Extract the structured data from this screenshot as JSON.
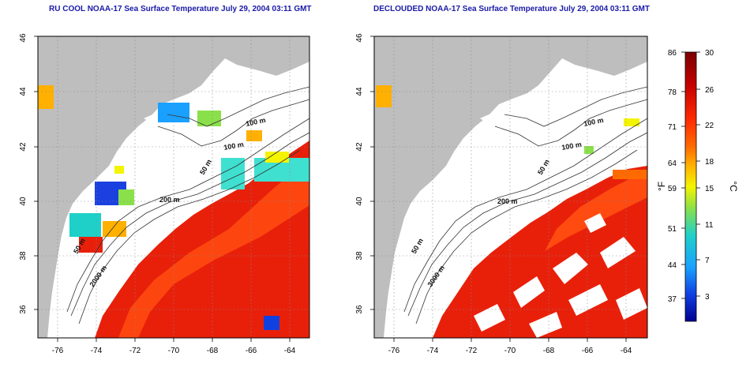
{
  "titles": {
    "left": "RU COOL NOAA-17 Sea Surface Temperature July 29, 2004 03:11 GMT",
    "right": "DECLOUDED NOAA-17 Sea Surface Temperature July 29, 2004 03:11 GMT"
  },
  "map_axes": {
    "lon_ticks": [
      "-76",
      "-74",
      "-72",
      "-70",
      "-68",
      "-66",
      "-64"
    ],
    "lat_ticks": [
      "36",
      "38",
      "40",
      "42",
      "44",
      "46"
    ],
    "grid": "dotted"
  },
  "contours": {
    "left": [
      "100 m",
      "100 m",
      "50 m",
      "200 m",
      "50 m",
      "2000 m"
    ],
    "right": [
      "100 m",
      "100 m",
      "50 m",
      "200 m",
      "50 m",
      "3000 m"
    ]
  },
  "colorbar": {
    "fahrenheit_unit": "°F",
    "celsius_unit": "°C",
    "fahrenheit_ticks": [
      "86",
      "78",
      "71",
      "64",
      "59",
      "51",
      "44",
      "37"
    ],
    "celsius_ticks": [
      "30",
      "26",
      "22",
      "18",
      "15",
      "11",
      "7",
      "3"
    ],
    "colors": [
      "#7a0000",
      "#c40000",
      "#ff2a00",
      "#ff6a00",
      "#ffb000",
      "#f4f400",
      "#8ae04a",
      "#1fd0c8",
      "#1aa0ff",
      "#1040e0",
      "#000090"
    ]
  },
  "legend_colors": {
    "land": "#bebebe",
    "ocean_cloud": "#ffffff",
    "warm_water": "#e8200a",
    "gulf_stream": "#ff4a10"
  }
}
